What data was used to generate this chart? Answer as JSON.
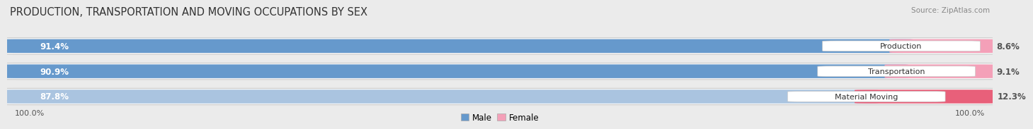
{
  "title": "PRODUCTION, TRANSPORTATION AND MOVING OCCUPATIONS BY SEX",
  "source": "Source: ZipAtlas.com",
  "categories": [
    "Production",
    "Transportation",
    "Material Moving"
  ],
  "male_pct": [
    91.4,
    90.9,
    87.8
  ],
  "female_pct": [
    8.6,
    9.1,
    12.3
  ],
  "male_colors": [
    "#6699cc",
    "#6699cc",
    "#aac4e0"
  ],
  "female_colors": [
    "#f4a0b8",
    "#f4a0b8",
    "#e8607a"
  ],
  "bg_color": "#ebebeb",
  "row_bg_color": "#e0e0e0",
  "row_fill_color": "#f8f8f8",
  "title_fontsize": 10.5,
  "bar_label_fontsize": 8.5,
  "cat_label_fontsize": 8.0,
  "axis_label_fontsize": 8.0,
  "axis_label_left": "100.0%",
  "axis_label_right": "100.0%",
  "legend_male": "Male",
  "legend_female": "Female",
  "legend_male_color": "#6699cc",
  "legend_female_color": "#f4a0b8"
}
